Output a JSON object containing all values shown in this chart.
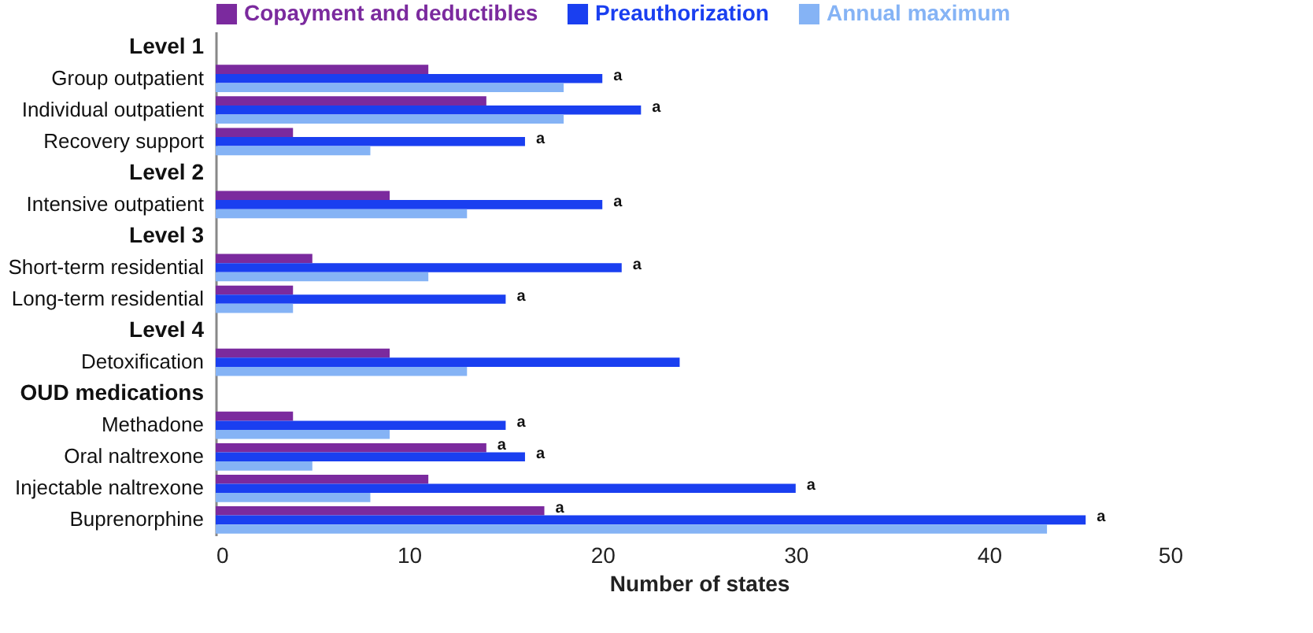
{
  "chart_data": {
    "type": "bar",
    "orientation": "horizontal",
    "xlabel": "Number of states",
    "categories": [
      "Level 1",
      "Group outpatient",
      "Individual outpatient",
      "Recovery support",
      "Level 2",
      "Intensive outpatient",
      "Level 3",
      "Short-term residential",
      "Long-term residential",
      "Level 4",
      "Detoxification",
      "OUD medications",
      "Methadone",
      "Oral naltrexone",
      "Injectable naltrexone",
      "Buprenorphine"
    ],
    "series": [
      {
        "name": "Copayment and deductibles",
        "color": "#7b2a9e",
        "values": [
          null,
          11,
          14,
          4,
          null,
          9,
          null,
          5,
          4,
          null,
          9,
          null,
          4,
          14,
          11,
          17
        ]
      },
      {
        "name": "Preauthorization",
        "color": "#1a3ff0",
        "values": [
          null,
          20,
          22,
          16,
          null,
          20,
          null,
          21,
          15,
          null,
          24,
          null,
          15,
          16,
          30,
          45
        ]
      },
      {
        "name": "Annual maximum",
        "color": "#85b3f5",
        "values": [
          null,
          18,
          18,
          8,
          null,
          13,
          null,
          11,
          4,
          null,
          13,
          null,
          9,
          5,
          8,
          43
        ]
      }
    ],
    "xlim": [
      0,
      50
    ],
    "xticks": [
      0,
      10,
      20,
      30,
      40,
      50
    ],
    "grid": false,
    "legend": "top",
    "annotations": [
      {
        "text": "a",
        "x": 20,
        "y": "Group outpatient"
      },
      {
        "text": "a",
        "x": 22,
        "y": "Individual outpatient"
      },
      {
        "text": "a",
        "x": 16,
        "y": "Recovery support"
      },
      {
        "text": "a",
        "x": 20,
        "y": "Intensive outpatient"
      },
      {
        "text": "a",
        "x": 21,
        "y": "Short-term residential"
      },
      {
        "text": "a",
        "x": 15,
        "y": "Long-term residential"
      },
      {
        "text": "a",
        "x": 15,
        "y": "Methadone"
      },
      {
        "text": "a",
        "x": 14,
        "y": "Oral naltrexone"
      },
      {
        "text": "a",
        "x": 16,
        "y": "Oral naltrexone"
      },
      {
        "text": "a",
        "x": 30,
        "y": "Injectable naltrexone"
      },
      {
        "text": "a",
        "x": 17,
        "y": "Buprenorphine"
      },
      {
        "text": "a",
        "x": 45,
        "y": "Buprenorphine"
      }
    ]
  }
}
